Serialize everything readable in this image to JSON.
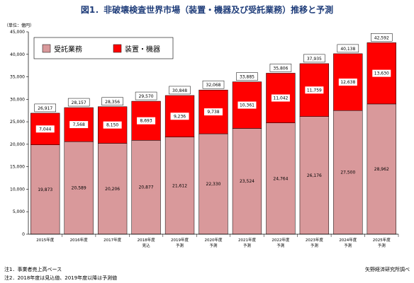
{
  "title": "図1．非破壊検査世界市場（装置・機器及び受託業務）推移と予測",
  "notes": {
    "note1": "注1．事業者売上高ベース",
    "note2": "注2．2018年度は見込値、2019年度以降は予測値",
    "source": "矢野経済研究所調べ"
  },
  "colors": {
    "service": "#d9999b",
    "equipment": "#ff0000",
    "edge": "#000000",
    "title": "#1f3d7a"
  },
  "chart_data": {
    "type": "bar",
    "stacked": true,
    "unit_label": "（単位：億円）",
    "categories": [
      [
        "2015年度"
      ],
      [
        "2016年度"
      ],
      [
        "2017年度"
      ],
      [
        "2018年度",
        "見込"
      ],
      [
        "2019年度",
        "予測"
      ],
      [
        "2020年度",
        "予測"
      ],
      [
        "2021年度",
        "予測"
      ],
      [
        "2022年度",
        "予測"
      ],
      [
        "2023年度",
        "予測"
      ],
      [
        "2024年度",
        "予測"
      ],
      [
        "2025年度",
        "予測"
      ]
    ],
    "series": [
      {
        "name": "受託業務",
        "values": [
          19873,
          20589,
          20206,
          20877,
          21612,
          22330,
          23524,
          24764,
          26176,
          27500,
          28962
        ]
      },
      {
        "name": "装置・機器",
        "values": [
          7044,
          7568,
          8150,
          8693,
          9236,
          9738,
          10361,
          11042,
          11759,
          12638,
          13630
        ]
      }
    ],
    "totals": [
      26917,
      28157,
      28356,
      29570,
      30848,
      32068,
      33885,
      35806,
      37935,
      40138,
      42592
    ],
    "ylim": [
      0,
      45000
    ],
    "yticks": [
      0,
      5000,
      10000,
      15000,
      20000,
      25000,
      30000,
      35000,
      40000,
      45000
    ],
    "grid": false,
    "legend_position": "top-left"
  }
}
